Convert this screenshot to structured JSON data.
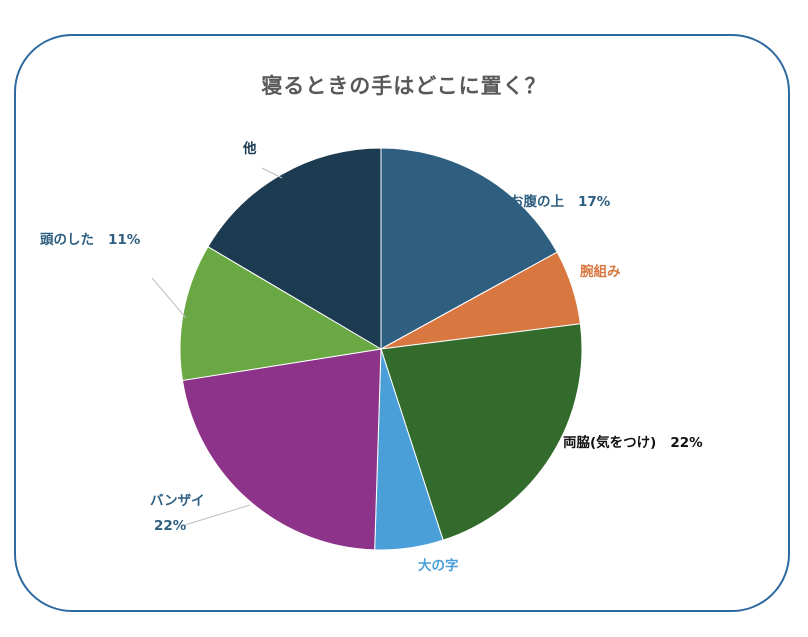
{
  "chart_data": {
    "type": "pie",
    "title": "寝るときの手はどこに置く？",
    "slices": [
      {
        "label": "お腹の上",
        "value": 17,
        "value_label": "17%",
        "color": "#2e5e80",
        "label_color": "#2e5e80"
      },
      {
        "label": "腕組み",
        "value": 6,
        "value_label": "",
        "color": "#d97740",
        "label_color": "#d97740"
      },
      {
        "label": "両脇(気をつけ)",
        "value": 22,
        "value_label": "22%",
        "color": "#336b2c",
        "label_color": "#111111"
      },
      {
        "label": "大の字",
        "value": 5.5,
        "value_label": "",
        "color": "#4a9fd8",
        "label_color": "#4a9fd8"
      },
      {
        "label": "バンザイ",
        "value": 22,
        "value_label": "22%",
        "color": "#8e338a",
        "label_color": "#2e5e80"
      },
      {
        "label": "頭のした",
        "value": 11,
        "value_label": "11%",
        "color": "#6aa844",
        "label_color": "#2e5e80"
      },
      {
        "label": "他",
        "value": 16.5,
        "value_label": "",
        "color": "#1c3a50",
        "label_color": "#1c3a50"
      }
    ],
    "legend": "none"
  }
}
